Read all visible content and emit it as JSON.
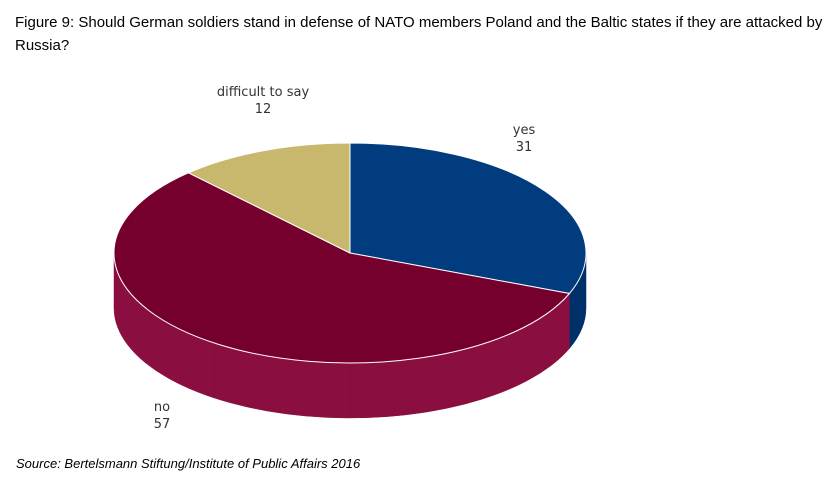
{
  "title": "Figure 9: Should German soldiers stand in defense of NATO members Poland and the Baltic states if they are attacked by Russia?",
  "source": "Source: Bertelsmann Stiftung/Institute of Public Affairs 2016",
  "chart_data": {
    "type": "pie",
    "style": "3d",
    "title": "Figure 9: Should German soldiers stand in defense of NATO members Poland and the Baltic states if they are attacked by Russia?",
    "slices": [
      {
        "label": "yes",
        "value": 31,
        "color": "#003c7e",
        "side_color": "#00306a"
      },
      {
        "label": "no",
        "value": 57,
        "color": "#76002d",
        "side_color": "#8a0f40"
      },
      {
        "label": "difficult to say",
        "value": 12,
        "color": "#c8b86e",
        "side_color": "#b3a25a"
      }
    ]
  }
}
